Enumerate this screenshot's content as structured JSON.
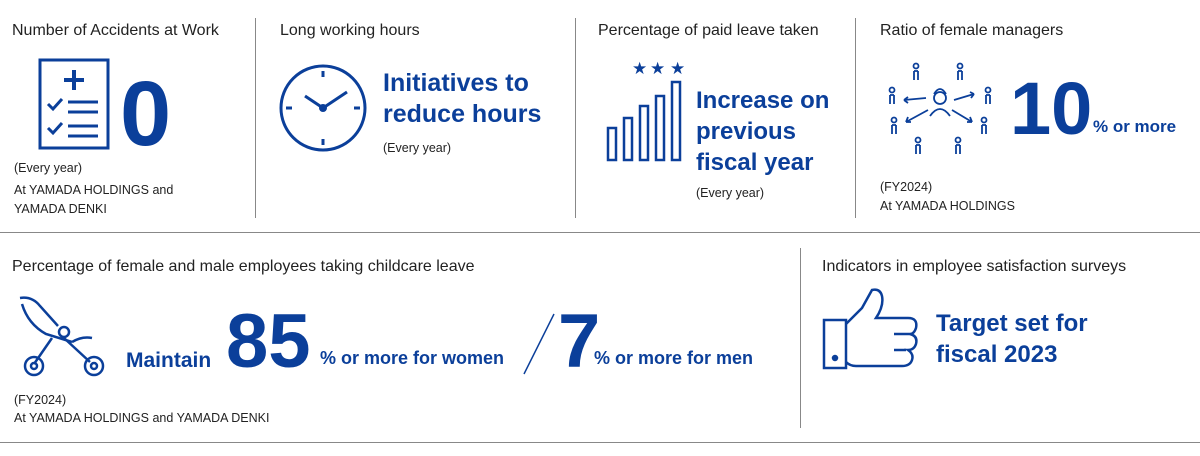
{
  "accidents": {
    "title": "Number of Accidents at Work",
    "value": "0",
    "period": "(Every year)",
    "scope_line1": "At YAMADA HOLDINGS and",
    "scope_line2": "YAMADA DENKI"
  },
  "hours": {
    "title": "Long working hours",
    "target_line1": "Initiatives to",
    "target_line2": "reduce hours",
    "period": "(Every year)"
  },
  "paid_leave": {
    "title": "Percentage of paid leave taken",
    "target_line1": "Increase on",
    "target_line2": "previous",
    "target_line3": "fiscal year",
    "period": "(Every year)"
  },
  "female_managers": {
    "title": "Ratio of female managers",
    "value": "10",
    "unit": "% or more",
    "period": "(FY2024)",
    "scope": "At YAMADA HOLDINGS"
  },
  "childcare": {
    "title": "Percentage of female and male employees taking childcare leave",
    "prefix": "Maintain",
    "women_value": "85",
    "women_unit": "% or more for women",
    "men_value": "7",
    "men_unit": "% or more for men",
    "period": "(FY2024)",
    "scope": "At YAMADA HOLDINGS and YAMADA DENKI"
  },
  "satisfaction": {
    "title": "Indicators in employee satisfaction surveys",
    "target_line1": "Target set for",
    "target_line2": "fiscal 2023"
  },
  "icons": [
    "checklist-icon",
    "clock-icon",
    "rising-bars-icon",
    "network-people-icon",
    "stroller-icon",
    "thumbs-up-icon"
  ],
  "colors": {
    "accent": "#0b3f9a",
    "divider": "#888888",
    "text": "#222222"
  }
}
